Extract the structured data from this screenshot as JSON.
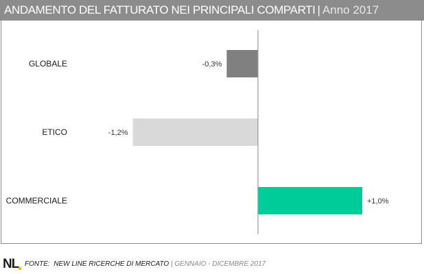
{
  "header": {
    "title": "ANDAMENTO DEL FATTURATO NEI PRINCIPALI COMPARTI",
    "separator": "|",
    "year": "Anno 2017"
  },
  "chart_data": {
    "type": "bar",
    "orientation": "horizontal",
    "categories": [
      "GLOBALE",
      "ETICO",
      "COMMERCIALE"
    ],
    "values": [
      -0.3,
      -1.2,
      1.0
    ],
    "value_labels": [
      "-0,3%",
      "-1,2%",
      "+1,0%"
    ],
    "colors": [
      "#808080",
      "#d9d9d9",
      "#00cc99"
    ],
    "xlim": [
      -1.2,
      1.0
    ],
    "grid": false,
    "legend": "none"
  },
  "footer": {
    "logo": "NL",
    "source_label": "FONTE:",
    "source_name": "NEW LINE RICERCHE DI MERCATO",
    "separator": "|",
    "period": "GENNAIO - DICEMBRE 2017"
  }
}
